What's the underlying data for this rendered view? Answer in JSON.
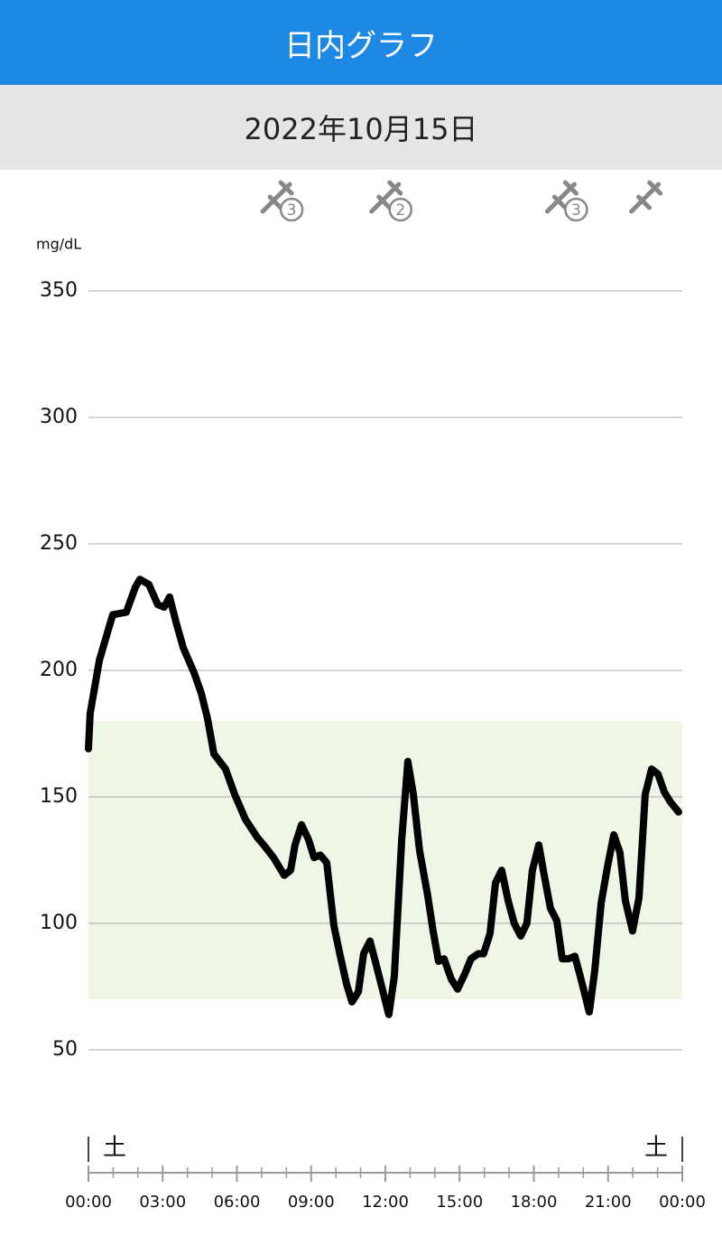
{
  "header": {
    "title": "日内グラフ"
  },
  "date": "2022年10月15日",
  "chart_data": {
    "type": "line",
    "y_unit": "mg/dL",
    "ylim": [
      50,
      350
    ],
    "yticks": [
      50,
      100,
      150,
      200,
      250,
      300,
      350
    ],
    "xlim": [
      0,
      24
    ],
    "xticks": [
      {
        "value": 0,
        "label": "00:00"
      },
      {
        "value": 3,
        "label": "03:00"
      },
      {
        "value": 6,
        "label": "06:00"
      },
      {
        "value": 9,
        "label": "09:00"
      },
      {
        "value": 12,
        "label": "12:00"
      },
      {
        "value": 15,
        "label": "15:00"
      },
      {
        "value": 18,
        "label": "18:00"
      },
      {
        "value": 21,
        "label": "21:00"
      },
      {
        "value": 24,
        "label": "00:00"
      }
    ],
    "xticks_minor": [
      1,
      2,
      4,
      5,
      7,
      8,
      10,
      11,
      13,
      14,
      16,
      17,
      19,
      20,
      22,
      23
    ],
    "weekday_start": "土",
    "weekday_end": "土",
    "grid": true,
    "target_range": [
      70,
      180
    ],
    "target_color": "#eef6e6",
    "low_threshold": 70,
    "low_color": "#e8212f",
    "events": [
      {
        "x": 7.7,
        "count": 3
      },
      {
        "x": 12.1,
        "count": 2
      },
      {
        "x": 19.2,
        "count": 3
      },
      {
        "x": 22.6
      }
    ],
    "series": [
      {
        "color": "#000000",
        "x": [
          0,
          0.07,
          0.44,
          0.98,
          1.53,
          1.9,
          2.08,
          2.44,
          2.8,
          3.06,
          3.28,
          3.54,
          3.83,
          4.27,
          4.56,
          4.81,
          5.07,
          5.54,
          5.91,
          6.35,
          6.82,
          7.08,
          7.48,
          7.91,
          8.17,
          8.35,
          8.61,
          8.9,
          9.12,
          9.37,
          9.63,
          9.92,
          10.18,
          10.43,
          10.65,
          10.91,
          11.12,
          11.38,
          11.67,
          11.93,
          12.14,
          12.36,
          12.66,
          12.91,
          13.13,
          13.38,
          13.71,
          13.93,
          14.15,
          14.37,
          14.66,
          14.92,
          15.21,
          15.46,
          15.75,
          15.97,
          16.23,
          16.45,
          16.7,
          16.96,
          17.21,
          17.47,
          17.72,
          17.94,
          18.2,
          18.42,
          18.67,
          18.93,
          19.15,
          19.4,
          19.66,
          19.88,
          20.06,
          20.24,
          20.46,
          20.72,
          20.97,
          21.23,
          21.48,
          21.7,
          21.99,
          22.25,
          22.5,
          22.76,
          23.02,
          23.27,
          23.52,
          23.85
        ],
        "values": [
          169,
          183,
          204,
          222,
          223,
          233,
          236,
          234,
          226,
          225,
          229,
          219,
          209,
          199,
          191,
          181,
          167,
          161,
          151,
          141,
          134,
          131,
          126,
          119,
          121,
          131,
          139,
          133,
          126,
          127,
          124,
          99,
          87,
          76,
          69,
          73,
          88,
          93,
          82,
          72,
          64,
          79,
          133,
          164,
          151,
          129,
          111,
          97,
          85,
          86,
          78,
          74,
          80,
          86,
          88,
          88,
          96,
          116,
          121,
          109,
          100,
          95,
          100,
          121,
          131,
          119,
          106,
          101,
          86,
          86,
          87,
          79,
          72,
          65,
          81,
          108,
          122,
          135,
          128,
          109,
          97,
          110,
          151,
          161,
          159,
          152,
          148,
          144
        ]
      }
    ]
  }
}
